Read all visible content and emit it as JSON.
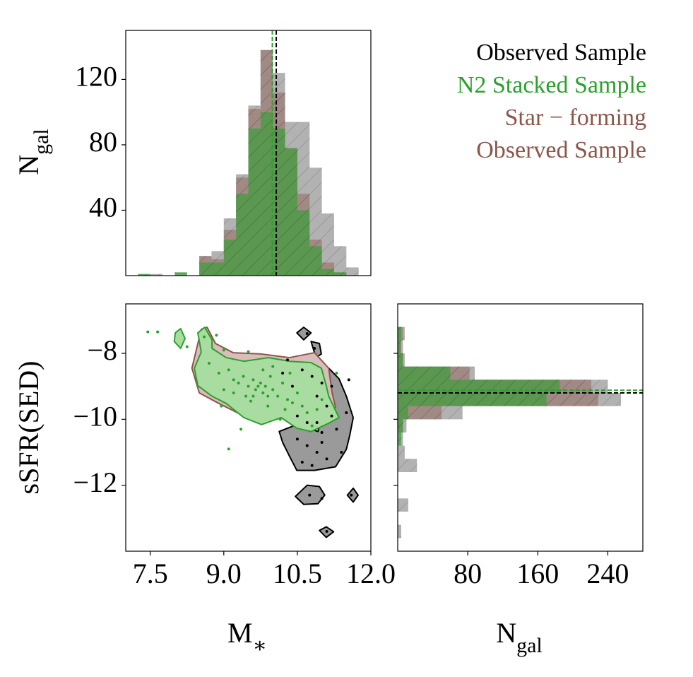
{
  "chart_data": [
    {
      "type": "histogram",
      "orientation": "vertical",
      "ylabel": {
        "main": "N",
        "sub": "gal"
      },
      "xlim": [
        7,
        12
      ],
      "ylim": [
        0,
        150
      ],
      "yticks": [
        40,
        80,
        120
      ],
      "bins": [
        7.25,
        7.5,
        7.75,
        8.0,
        8.25,
        8.5,
        8.75,
        9.0,
        9.25,
        9.5,
        9.75,
        10.0,
        10.25,
        10.5,
        10.75,
        11.0,
        11.25,
        11.5,
        11.75
      ],
      "series": [
        {
          "name": "Observed Sample",
          "color": "#000000",
          "opacity": 0.3,
          "zorder": 1,
          "values": [
            1,
            1,
            0,
            2,
            0,
            12,
            15,
            35,
            62,
            104,
            138,
            124,
            94,
            94,
            66,
            38,
            18,
            5
          ]
        },
        {
          "name": "N2 Stacked Sample",
          "color": "#2ca02c",
          "opacity": 0.6,
          "zorder": 3,
          "values": [
            1,
            0,
            0,
            2,
            0,
            8,
            8,
            22,
            50,
            90,
            100,
            90,
            78,
            40,
            18,
            4,
            2,
            0
          ]
        },
        {
          "name": "Star − forming Observed Sample",
          "color": "#8c564b",
          "opacity": 0.45,
          "zorder": 2,
          "values": [
            0,
            0,
            0,
            0,
            0,
            12,
            10,
            28,
            60,
            102,
            138,
            112,
            78,
            50,
            22,
            8,
            2,
            0
          ]
        }
      ],
      "vlines": [
        {
          "value": 10.07,
          "color": "#000000"
        },
        {
          "value": 9.99,
          "color": "#2ca02c"
        }
      ]
    },
    {
      "type": "scatter",
      "xlabel": {
        "main": "M",
        "sub": "∗"
      },
      "ylabel": "sSFR(SED)",
      "xlim": [
        7,
        12
      ],
      "ylim": [
        -14,
        -6.5
      ],
      "xticks": [
        7.5,
        {
          "value": 9,
          "label": "9.0"
        },
        10.5,
        {
          "value": 12,
          "label": "12.0"
        }
      ],
      "yticks": [
        {
          "value": -12,
          "label": "−12"
        },
        {
          "value": -10,
          "label": "−10"
        },
        {
          "value": -8,
          "label": "−8"
        }
      ],
      "contours": [
        {
          "color": "#000000",
          "fill": "#9a9a9a",
          "polygons": [
            {
              "x": [
                10.13,
                10.49,
                10.92,
                11.14,
                11.14,
                11.35,
                11.5,
                11.64,
                11.57,
                11.5,
                11.28,
                10.85,
                10.49,
                10.34,
                10.2
              ],
              "y": [
                -10.37,
                -10.16,
                -10.37,
                -9.3,
                -8.45,
                -8.77,
                -9.3,
                -9.95,
                -10.48,
                -10.91,
                -11.44,
                -11.55,
                -11.55,
                -11.12,
                -10.7
              ]
            },
            {
              "x": [
                10.63,
                10.78,
                10.63,
                10.49
              ],
              "y": [
                -7.21,
                -7.38,
                -7.59,
                -7.38
              ]
            },
            {
              "x": [
                10.78,
                10.95,
                10.99,
                10.88
              ],
              "y": [
                -7.64,
                -7.7,
                -8.02,
                -8.13
              ]
            },
            {
              "x": [
                10.46,
                10.7,
                10.95,
                11.06,
                10.92,
                10.63,
                10.46
              ],
              "y": [
                -12.34,
                -12.0,
                -12.04,
                -12.3,
                -12.56,
                -12.58,
                -12.34
              ]
            },
            {
              "x": [
                11.64,
                11.74,
                11.64,
                11.52
              ],
              "y": [
                -12.09,
                -12.3,
                -12.51,
                -12.3
              ]
            },
            {
              "x": [
                10.95,
                11.09,
                11.24,
                11.09
              ],
              "y": [
                -13.37,
                -13.26,
                -13.41,
                -13.58
              ]
            }
          ]
        },
        {
          "color": "#8c564b",
          "fill": "#d9bcbc",
          "polygons": [
            {
              "x": [
                8.5,
                8.35,
                8.54,
                8.66,
                8.83,
                9.19,
                9.77,
                10.34,
                10.85,
                11.14,
                11.21,
                11.28,
                11.06,
                10.78,
                10.49,
                10.2,
                9.77,
                9.33,
                8.9
              ],
              "y": [
                -9.2,
                -8.45,
                -7.27,
                -7.21,
                -7.7,
                -7.98,
                -8.02,
                -8.13,
                -7.98,
                -8.45,
                -9.2,
                -9.63,
                -9.84,
                -9.95,
                -10.16,
                -9.95,
                -9.95,
                -9.84,
                -9.52
              ]
            }
          ]
        },
        {
          "color": "#2ca02c",
          "fill": "#a8dca0",
          "polygons": [
            {
              "x": [
                8.47,
                8.61,
                8.76,
                8.76,
                9.05,
                9.41,
                9.91,
                10.34,
                10.78,
                10.99,
                11.09,
                11.14,
                11.35,
                11.14,
                10.78,
                10.49,
                10.17,
                9.77,
                9.41,
                9.05,
                8.76,
                8.47,
                8.4,
                8.54
              ],
              "y": [
                -7.38,
                -7.21,
                -7.59,
                -7.85,
                -8.13,
                -8.24,
                -8.13,
                -8.24,
                -8.28,
                -8.45,
                -8.98,
                -9.3,
                -9.95,
                -10.12,
                -10.37,
                -10.27,
                -9.95,
                -10.16,
                -9.95,
                -9.52,
                -9.3,
                -8.98,
                -8.45,
                -7.96
              ]
            },
            {
              "x": [
                8.01,
                8.12,
                8.21,
                8.12,
                7.99
              ],
              "y": [
                -7.38,
                -7.25,
                -7.55,
                -7.85,
                -7.64
              ]
            }
          ]
        }
      ],
      "series": [
        {
          "color": "#000000",
          "x": [
            10.3,
            10.6,
            10.8,
            11.0,
            10.4,
            10.9,
            11.1,
            10.5,
            10.7,
            10.9,
            11.0,
            10.5,
            10.7,
            10.9,
            11.1,
            10.6,
            10.8,
            11.0,
            11.3,
            11.5,
            11.4,
            11.2,
            10.7,
            10.85,
            10.75,
            11.0,
            11.6,
            11.1,
            11.2,
            10.2,
            11.55
          ],
          "y": [
            -8.2,
            -8.5,
            -8.7,
            -8.9,
            -9.0,
            -9.3,
            -9.6,
            -9.9,
            -10.1,
            -10.1,
            -10.4,
            -10.6,
            -10.8,
            -11.0,
            -11.2,
            -11.3,
            -11.4,
            -10.7,
            -10.3,
            -9.8,
            -11.0,
            -9.0,
            -7.4,
            -7.85,
            -12.3,
            -12.4,
            -12.3,
            -13.4,
            -9.9,
            -8.6,
            -8.8
          ]
        },
        {
          "color": "#2ca02c",
          "x": [
            7.45,
            7.65,
            8.25,
            8.6,
            8.85,
            9.0,
            9.5,
            10.0,
            8.7,
            8.9,
            9.1,
            9.2,
            9.3,
            9.4,
            9.5,
            9.6,
            9.65,
            9.7,
            9.75,
            9.8,
            9.85,
            9.9,
            9.95,
            10.0,
            10.1,
            10.2,
            10.3,
            10.4,
            10.5,
            10.6,
            10.7,
            10.9,
            11.0,
            9.45,
            9.55,
            9.2,
            9.0,
            10.8,
            9.35,
            9.1,
            8.95,
            10.15,
            9.8,
            10.35,
            9.6,
            9.9,
            10.25,
            11.3
          ],
          "y": [
            -7.35,
            -7.35,
            -7.8,
            -7.5,
            -7.45,
            -7.9,
            -7.95,
            -8.4,
            -8.3,
            -8.6,
            -8.5,
            -8.8,
            -8.9,
            -8.7,
            -9.0,
            -8.8,
            -9.1,
            -9.0,
            -8.9,
            -9.2,
            -9.0,
            -9.3,
            -8.7,
            -9.1,
            -9.3,
            -8.9,
            -9.4,
            -9.5,
            -9.2,
            -9.6,
            -9.8,
            -9.7,
            -9.4,
            -9.3,
            -9.45,
            -9.2,
            -9.1,
            -10.2,
            -10.3,
            -10.9,
            -9.6,
            -10.0,
            -8.5,
            -8.6,
            -9.3,
            -9.6,
            -9.7,
            -8.6
          ]
        }
      ]
    },
    {
      "type": "histogram",
      "orientation": "horizontal",
      "xlabel": {
        "main": "N",
        "sub": "gal"
      },
      "xlim": [
        0,
        280
      ],
      "ylim": [
        -14,
        -6.5
      ],
      "xticks": [
        80,
        160,
        240
      ],
      "yticks": [
        -12,
        -10,
        -8
      ],
      "bins": [
        -13.6,
        -13.2,
        -12.8,
        -12.4,
        -12.0,
        -11.6,
        -11.2,
        -10.8,
        -10.4,
        -10.0,
        -9.6,
        -9.2,
        -8.8,
        -8.4,
        -8.0,
        -7.6,
        -7.2
      ],
      "series": [
        {
          "color": "#000000",
          "opacity": 0.3,
          "zorder": 1,
          "values": [
            4,
            0,
            12,
            0,
            0,
            22,
            8,
            6,
            10,
            74,
            255,
            240,
            88,
            8,
            6,
            8
          ]
        },
        {
          "color": "#2ca02c",
          "opacity": 0.6,
          "zorder": 3,
          "values": [
            0,
            0,
            0,
            0,
            0,
            0,
            0,
            4,
            6,
            12,
            170,
            185,
            60,
            6,
            3,
            4
          ]
        },
        {
          "color": "#8c564b",
          "opacity": 0.45,
          "zorder": 2,
          "values": [
            0,
            0,
            0,
            0,
            0,
            0,
            0,
            0,
            6,
            50,
            229,
            221,
            82,
            6,
            4,
            6
          ]
        }
      ],
      "hlines": [
        {
          "value": -9.2,
          "color": "#000000"
        },
        {
          "value": -9.12,
          "color": "#2ca02c"
        }
      ]
    }
  ]
}
